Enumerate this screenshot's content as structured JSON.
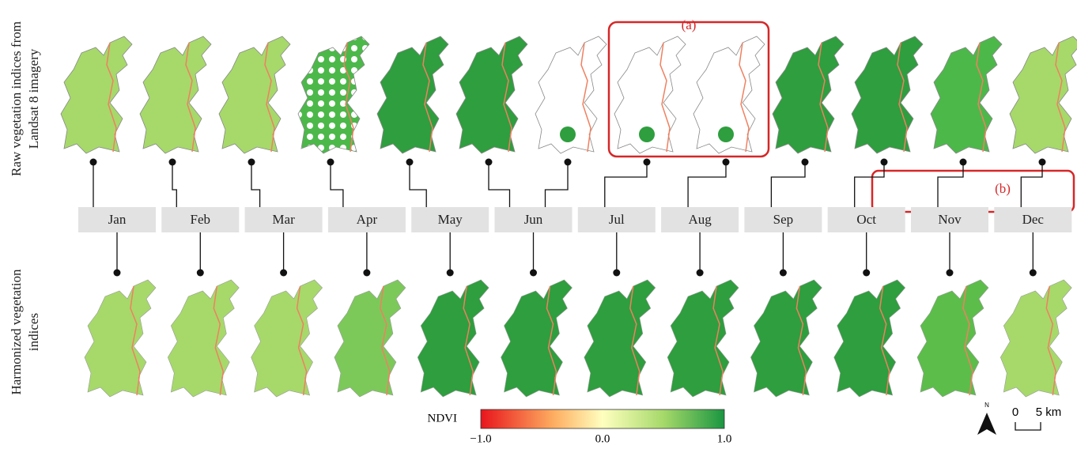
{
  "row_labels": {
    "raw": [
      "Raw vegetation indices from",
      "Landsat 8 imagery"
    ],
    "harmonized": [
      "Harmonized vegetation",
      "indices"
    ]
  },
  "months": [
    "Jan",
    "Feb",
    "Mar",
    "Apr",
    "May",
    "Jun",
    "Jul",
    "Aug",
    "Sep",
    "Oct",
    "Nov",
    "Dec"
  ],
  "callouts": [
    "(a)",
    "(b)"
  ],
  "legend": {
    "title": "NDVI",
    "ticks": [
      "−1.0",
      "0.0",
      "1.0"
    ]
  },
  "scale_bar": [
    "0",
    "5 km"
  ],
  "north": "N"
}
